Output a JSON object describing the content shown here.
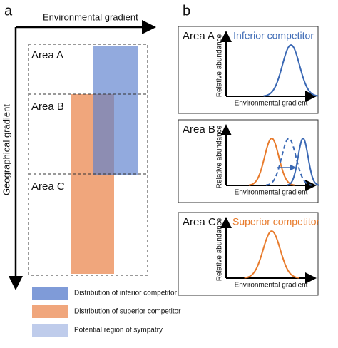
{
  "panel_a": {
    "label": "a",
    "x_axis": "Environmental gradient",
    "y_axis": "Geographical gradient",
    "areas": [
      "Area A",
      "Area B",
      "Area C"
    ],
    "legend": [
      "Distribution of inferior competitor",
      "Distribution of superior competitor",
      "Potential region of sympatry"
    ]
  },
  "panel_b": {
    "label": "b",
    "boxes": [
      {
        "title": "Area A",
        "note": "Inferior competitor",
        "y_axis": "Relative abundance",
        "x_axis": "Environmental gradient"
      },
      {
        "title": "Area B",
        "y_axis": "Relative abundance",
        "x_axis": "Environmental gradient"
      },
      {
        "title": "Area C",
        "note": "Superior competitor",
        "y_axis": "Relative abundance",
        "x_axis": "Environmental gradient"
      }
    ]
  }
}
